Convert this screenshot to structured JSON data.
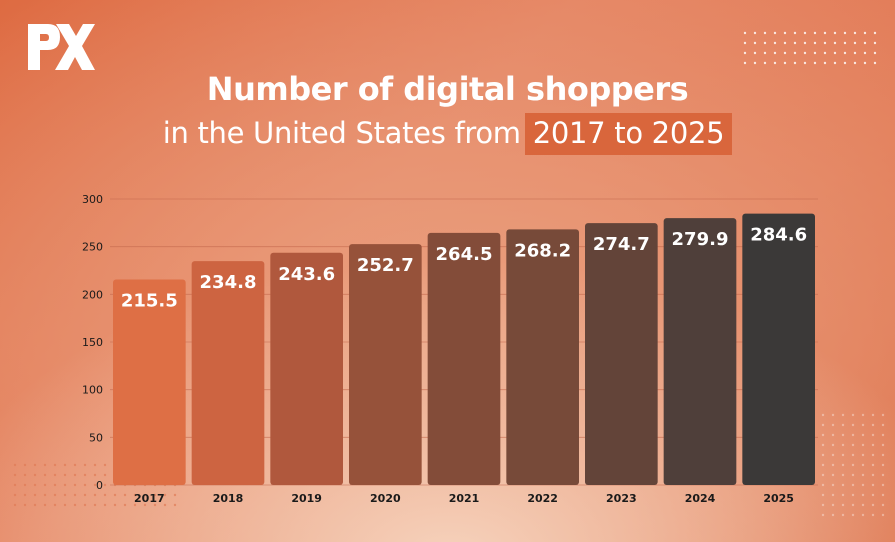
{
  "logo": {
    "text": "PX"
  },
  "title": {
    "line1": "Number of digital shoppers",
    "line2_prefix": "in the United States from",
    "line2_highlight": "2017 to 2025"
  },
  "colors": {
    "bars": [
      "#de6f45",
      "#cd6441",
      "#b0583d",
      "#96523a",
      "#834c39",
      "#774a39",
      "#634439",
      "#4f3f3a",
      "#3b3938"
    ],
    "highlight": "#d9663c",
    "gridline": "#c46a4f"
  },
  "chart_data": {
    "type": "bar",
    "title": "Number of digital shoppers in the United States from 2017 to 2025",
    "categories": [
      "2017",
      "2018",
      "2019",
      "2020",
      "2021",
      "2022",
      "2023",
      "2024",
      "2025"
    ],
    "values": [
      215.5,
      234.8,
      243.6,
      252.7,
      264.5,
      268.2,
      274.7,
      279.9,
      284.6
    ],
    "value_labels": [
      "215.5",
      "234.8",
      "243.6",
      "252.7",
      "264.5",
      "268.2",
      "274.7",
      "279.9",
      "284.6"
    ],
    "yticks": [
      "0",
      "50",
      "100",
      "150",
      "200",
      "250",
      "300"
    ],
    "ylim": [
      0,
      300
    ],
    "xlabel": "",
    "ylabel": "",
    "grid": true,
    "legend": "none"
  }
}
